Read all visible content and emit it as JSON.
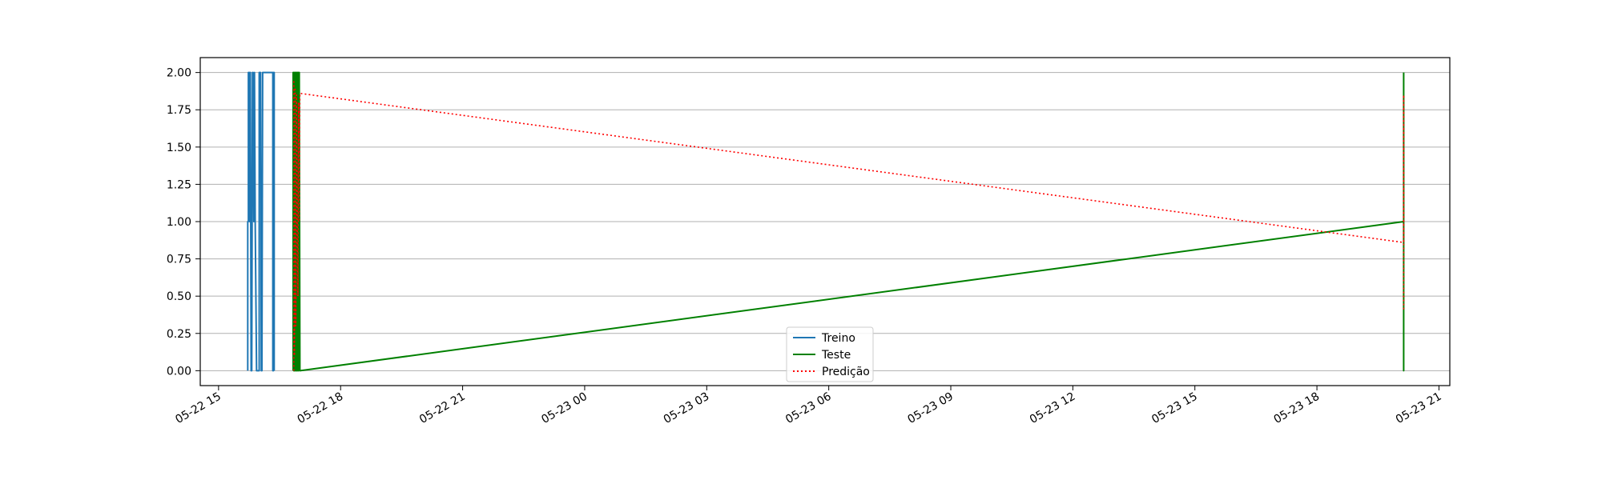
{
  "chart_data": {
    "type": "line",
    "title": "",
    "xlabel": "",
    "ylabel": "",
    "grid": "horizontal",
    "legend_position": "lower center",
    "xlim": [
      "2022-05-22 14:33",
      "2022-05-23 21:16"
    ],
    "ylim": [
      -0.1,
      2.1
    ],
    "x_ticks": [
      "2022-05-22 15:00",
      "2022-05-22 18:00",
      "2022-05-22 21:00",
      "2022-05-23 00:00",
      "2022-05-23 03:00",
      "2022-05-23 06:00",
      "2022-05-23 09:00",
      "2022-05-23 12:00",
      "2022-05-23 15:00",
      "2022-05-23 18:00",
      "2022-05-23 21:00"
    ],
    "x_tick_labels": [
      "05-22 15",
      "05-22 18",
      "05-22 21",
      "05-23 00",
      "05-23 03",
      "05-23 06",
      "05-23 09",
      "05-23 12",
      "05-23 15",
      "05-23 18",
      "05-23 21"
    ],
    "y_ticks": [
      0,
      0.25,
      0.5,
      0.75,
      1.0,
      1.25,
      1.5,
      1.75,
      2.0
    ],
    "y_tick_labels": [
      "0.00",
      "0.25",
      "0.50",
      "0.75",
      "1.00",
      "1.25",
      "1.50",
      "1.75",
      "2.00"
    ],
    "series": [
      {
        "name": "Treino",
        "color": "#1f77b4",
        "style": "solid",
        "points": [
          [
            "2022-05-22 15:43",
            0
          ],
          [
            "2022-05-22 15:43",
            1
          ],
          [
            "2022-05-22 15:44",
            1
          ],
          [
            "2022-05-22 15:44",
            2
          ],
          [
            "2022-05-22 15:45",
            2
          ],
          [
            "2022-05-22 15:46",
            1
          ],
          [
            "2022-05-22 15:46",
            2
          ],
          [
            "2022-05-22 15:47",
            2
          ],
          [
            "2022-05-22 15:48",
            0
          ],
          [
            "2022-05-22 15:49",
            0
          ],
          [
            "2022-05-22 15:50",
            2
          ],
          [
            "2022-05-22 15:51",
            2
          ],
          [
            "2022-05-22 15:52",
            1
          ],
          [
            "2022-05-22 15:53",
            2
          ],
          [
            "2022-05-22 15:54",
            1
          ],
          [
            "2022-05-22 15:56",
            0
          ],
          [
            "2022-05-22 15:57",
            0
          ],
          [
            "2022-05-22 16:00",
            0
          ],
          [
            "2022-05-22 16:00",
            2
          ],
          [
            "2022-05-22 16:02",
            2
          ],
          [
            "2022-05-22 16:03",
            0
          ],
          [
            "2022-05-22 16:04",
            0
          ],
          [
            "2022-05-22 16:05",
            2
          ],
          [
            "2022-05-22 16:20",
            2
          ],
          [
            "2022-05-22 16:20",
            0
          ],
          [
            "2022-05-22 16:21",
            0
          ],
          [
            "2022-05-22 16:21",
            2
          ],
          [
            "2022-05-22 16:22",
            2
          ],
          [
            "2022-05-22 16:22",
            0
          ]
        ]
      },
      {
        "name": "Teste",
        "color": "#008000",
        "style": "solid",
        "points": [
          [
            "2022-05-22 16:50",
            0
          ],
          [
            "2022-05-22 16:50",
            2
          ],
          [
            "2022-05-22 16:51",
            2
          ],
          [
            "2022-05-22 16:51",
            0
          ],
          [
            "2022-05-22 16:52",
            0
          ],
          [
            "2022-05-22 16:52",
            2
          ],
          [
            "2022-05-22 16:53",
            2
          ],
          [
            "2022-05-22 16:53",
            0
          ],
          [
            "2022-05-22 16:54",
            0
          ],
          [
            "2022-05-22 16:54",
            2
          ],
          [
            "2022-05-22 16:55",
            2
          ],
          [
            "2022-05-22 16:55",
            0
          ],
          [
            "2022-05-22 16:56",
            0
          ],
          [
            "2022-05-22 16:56",
            2
          ],
          [
            "2022-05-22 16:57",
            2
          ],
          [
            "2022-05-22 16:57",
            0
          ],
          [
            "2022-05-22 16:58",
            0
          ],
          [
            "2022-05-22 16:58",
            2
          ],
          [
            "2022-05-22 16:59",
            2
          ],
          [
            "2022-05-22 17:00",
            0
          ],
          [
            "2022-05-23 20:08",
            1
          ],
          [
            "2022-05-23 20:08",
            0
          ],
          [
            "2022-05-23 20:08",
            2
          ]
        ]
      },
      {
        "name": "Predição",
        "color": "#ff0000",
        "style": "dotted",
        "points": [
          [
            "2022-05-22 16:51",
            0
          ],
          [
            "2022-05-22 16:51",
            1.95
          ],
          [
            "2022-05-22 16:52",
            0.1
          ],
          [
            "2022-05-22 16:53",
            1.9
          ],
          [
            "2022-05-22 16:54",
            0.3
          ],
          [
            "2022-05-22 16:55",
            1.85
          ],
          [
            "2022-05-22 16:57",
            0.5
          ],
          [
            "2022-05-22 16:58",
            1.8
          ],
          [
            "2022-05-22 16:59",
            1.0
          ],
          [
            "2022-05-22 17:00",
            1.86
          ],
          [
            "2022-05-23 20:08",
            0.86
          ],
          [
            "2022-05-23 20:08",
            1.85
          ],
          [
            "2022-05-23 20:08",
            0.4
          ]
        ]
      }
    ]
  }
}
